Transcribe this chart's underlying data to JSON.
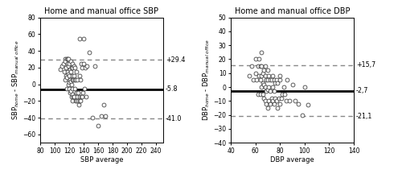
{
  "sbp": {
    "title": "Home and manual office SBP",
    "xlabel": "SBP average",
    "ylabel": "SBP$_{home}$ - SBP$_{manual\\ office}$",
    "mean_diff": -5.8,
    "upper_sd": 29.4,
    "lower_sd": -41.0,
    "xlim": [
      80,
      250
    ],
    "ylim": [
      -70,
      80
    ],
    "xticks": [
      80,
      100,
      120,
      140,
      160,
      180,
      200,
      220,
      240
    ],
    "yticks": [
      -60,
      -40,
      -20,
      0,
      20,
      40,
      60,
      80
    ],
    "label_upper": "+29.4",
    "label_mean": "-5.8",
    "label_lower": "-41.0",
    "scatter_x": [
      108,
      110,
      112,
      113,
      114,
      115,
      115,
      116,
      116,
      117,
      117,
      117,
      118,
      118,
      118,
      119,
      119,
      119,
      119,
      120,
      120,
      120,
      120,
      121,
      121,
      121,
      122,
      122,
      122,
      122,
      123,
      123,
      123,
      124,
      124,
      124,
      125,
      125,
      125,
      125,
      126,
      126,
      127,
      127,
      127,
      128,
      128,
      128,
      129,
      129,
      130,
      130,
      130,
      131,
      131,
      132,
      132,
      133,
      134,
      134,
      135,
      135,
      136,
      136,
      137,
      137,
      138,
      138,
      139,
      140,
      140,
      141,
      142,
      143,
      145,
      148,
      152,
      156,
      160,
      165,
      168,
      170
    ],
    "scatter_y": [
      18,
      22,
      25,
      15,
      30,
      5,
      28,
      10,
      20,
      -5,
      8,
      30,
      15,
      25,
      30,
      0,
      12,
      22,
      30,
      -5,
      2,
      10,
      25,
      -10,
      5,
      18,
      -8,
      3,
      15,
      28,
      -15,
      0,
      20,
      -12,
      5,
      25,
      -20,
      -5,
      10,
      20,
      -15,
      5,
      -15,
      10,
      22,
      -5,
      20,
      5,
      -20,
      5,
      -10,
      15,
      -20,
      -15,
      5,
      -10,
      -20,
      -25,
      -20,
      10,
      -15,
      55,
      -20,
      5,
      -15,
      25,
      -15,
      20,
      -10,
      25,
      55,
      -5,
      20,
      -15,
      22,
      38,
      -40,
      22,
      -50,
      -38,
      -25,
      -38
    ]
  },
  "dbp": {
    "title": "Home and manual office DBP",
    "xlabel": "DBP average",
    "ylabel": "DBP$_{home}$ - DBP$_{manual\\ office}$",
    "mean_diff": -2.7,
    "upper_sd": 15.7,
    "lower_sd": -21.1,
    "xlim": [
      40,
      140
    ],
    "ylim": [
      -40,
      50
    ],
    "xticks": [
      40,
      60,
      80,
      100,
      120,
      140
    ],
    "yticks": [
      -40,
      -30,
      -20,
      -10,
      0,
      10,
      20,
      30,
      40,
      50
    ],
    "label_upper": "+15,7",
    "label_mean": "-2,7",
    "label_lower": "-21,1",
    "scatter_x": [
      55,
      57,
      58,
      60,
      60,
      61,
      62,
      62,
      63,
      63,
      64,
      64,
      64,
      65,
      65,
      65,
      65,
      66,
      66,
      66,
      67,
      67,
      67,
      68,
      68,
      68,
      68,
      69,
      69,
      69,
      70,
      70,
      70,
      70,
      71,
      71,
      71,
      72,
      72,
      72,
      73,
      73,
      74,
      74,
      74,
      75,
      75,
      75,
      76,
      76,
      77,
      77,
      78,
      78,
      79,
      80,
      80,
      80,
      81,
      82,
      83,
      84,
      85,
      86,
      88,
      90,
      92,
      95,
      98,
      100,
      103
    ],
    "scatter_y": [
      8,
      15,
      5,
      10,
      20,
      5,
      15,
      -5,
      8,
      20,
      -5,
      5,
      15,
      0,
      8,
      15,
      25,
      -5,
      3,
      10,
      -8,
      2,
      12,
      -10,
      0,
      8,
      15,
      -12,
      -3,
      5,
      -15,
      -2,
      5,
      12,
      -10,
      0,
      8,
      -12,
      -3,
      5,
      -8,
      5,
      -10,
      0,
      8,
      -12,
      -3,
      5,
      -8,
      3,
      -10,
      5,
      -15,
      3,
      -8,
      -12,
      5,
      8,
      -8,
      -5,
      0,
      -5,
      -10,
      5,
      -10,
      2,
      -10,
      -12,
      -20,
      0,
      -13
    ]
  },
  "line_color": "#000000",
  "dash_color": "#888888",
  "marker_facecolor": "white",
  "marker_edgecolor": "#444444",
  "marker_size": 3.5,
  "marker_linewidth": 0.6,
  "mean_linewidth": 2.0,
  "dash_linewidth": 1.0,
  "label_fontsize": 6.0,
  "title_fontsize": 7.0,
  "tick_fontsize": 5.5,
  "annotation_fontsize": 5.8,
  "background_color": "#ffffff"
}
